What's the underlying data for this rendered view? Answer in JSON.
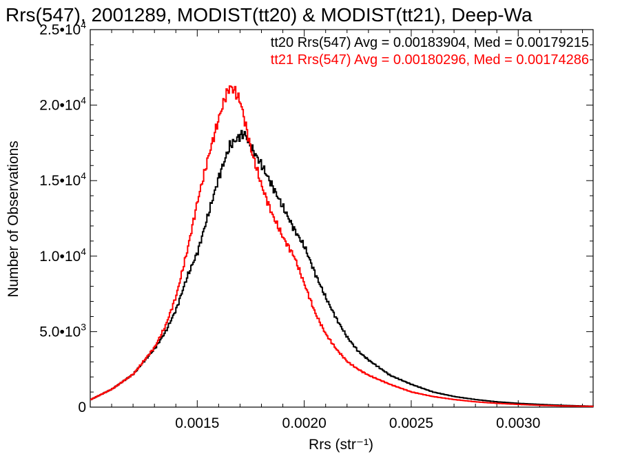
{
  "chart_data": {
    "type": "line",
    "title": "Rrs(547), 2001289, MODIST(tt20) & MODIST(tt21), Deep-Wa",
    "xlabel": "Rrs (str⁻¹)",
    "ylabel": "Number of Observations",
    "xlim": [
      0.001,
      0.00335
    ],
    "ylim": [
      0,
      25000
    ],
    "x_ticks": [
      0.0015,
      0.002,
      0.0025,
      0.003
    ],
    "x_tick_labels": [
      "0.0015",
      "0.0020",
      "0.0025",
      "0.0030"
    ],
    "y_ticks": [
      0,
      5000,
      10000,
      15000,
      20000,
      25000
    ],
    "y_tick_labels": [
      {
        "mantissa": "0",
        "exp": ""
      },
      {
        "mantissa": "5.0•10",
        "exp": "3"
      },
      {
        "mantissa": "1.0•10",
        "exp": "4"
      },
      {
        "mantissa": "1.5•10",
        "exp": "4"
      },
      {
        "mantissa": "2.0•10",
        "exp": "4"
      },
      {
        "mantissa": "2.5•10",
        "exp": "4"
      }
    ],
    "grid": false,
    "legend_position": "top-right",
    "series": [
      {
        "name": "tt20 Rrs(547) Avg = 0.00183904, Med = 0.00179215",
        "color": "#000000",
        "x": [
          0.001,
          0.0011,
          0.0012,
          0.0013,
          0.00135,
          0.0014,
          0.00145,
          0.0015,
          0.00155,
          0.0016,
          0.00165,
          0.0017,
          0.00172,
          0.00175,
          0.0018,
          0.00185,
          0.0019,
          0.00195,
          0.002,
          0.00205,
          0.0021,
          0.00215,
          0.0022,
          0.00225,
          0.0023,
          0.0024,
          0.0025,
          0.0026,
          0.0027,
          0.0028,
          0.0029,
          0.003,
          0.0031,
          0.0032,
          0.00335
        ],
        "y": [
          500,
          1200,
          2200,
          3900,
          5000,
          6500,
          8600,
          10300,
          12800,
          15300,
          17300,
          18000,
          18100,
          17200,
          16000,
          14600,
          13200,
          11800,
          10600,
          8800,
          7200,
          5800,
          4600,
          3700,
          3100,
          2100,
          1500,
          1000,
          700,
          500,
          350,
          250,
          180,
          120,
          60
        ]
      },
      {
        "name": "tt21 Rrs(547) Avg = 0.00180296, Med = 0.00174286",
        "color": "#ff0000",
        "x": [
          0.001,
          0.0011,
          0.0012,
          0.0013,
          0.00135,
          0.0014,
          0.00145,
          0.0015,
          0.00155,
          0.0016,
          0.00163,
          0.00165,
          0.00167,
          0.0017,
          0.00175,
          0.0018,
          0.00185,
          0.0019,
          0.00195,
          0.002,
          0.00205,
          0.0021,
          0.00215,
          0.0022,
          0.00225,
          0.0023,
          0.0024,
          0.0025,
          0.0026,
          0.0027,
          0.0028,
          0.0029,
          0.003,
          0.0031,
          0.0032,
          0.00335
        ],
        "y": [
          500,
          1200,
          2200,
          4000,
          5400,
          7400,
          10300,
          13700,
          16600,
          19200,
          20600,
          21200,
          21000,
          20200,
          17000,
          14600,
          12700,
          11200,
          10000,
          8100,
          6200,
          4800,
          3800,
          3000,
          2500,
          2100,
          1500,
          1000,
          700,
          500,
          350,
          250,
          180,
          120,
          80,
          50
        ]
      }
    ]
  }
}
